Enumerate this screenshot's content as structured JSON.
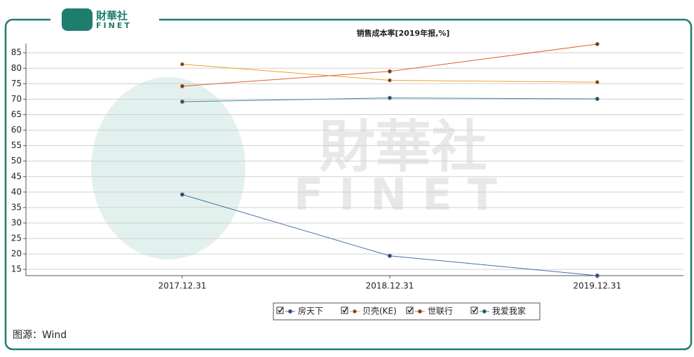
{
  "logo": {
    "cn": "財華社",
    "en": "FINET"
  },
  "watermark": {
    "cn": "財華社",
    "en": "FINET"
  },
  "source": "图源：Wind",
  "chart_data": {
    "type": "line",
    "title": "销售成本率[2019年报,%]",
    "categories": [
      "2017.12.31",
      "2018.12.31",
      "2019.12.31"
    ],
    "series": [
      {
        "name": "房天下",
        "color": "#4a6db0",
        "values": [
          39.2,
          19.4,
          13
        ]
      },
      {
        "name": "贝壳(KE)",
        "color": "#f0a030",
        "values": [
          81.3,
          76.1,
          75.5
        ]
      },
      {
        "name": "世联行",
        "color": "#e0602a",
        "values": [
          74.2,
          79,
          87.8
        ]
      },
      {
        "name": "我爱我家",
        "color": "#3a8aa0",
        "values": [
          69.2,
          70.4,
          70.1
        ]
      }
    ],
    "ylim": [
      13,
      88
    ],
    "yticks": [
      15,
      20,
      25,
      30,
      35,
      40,
      45,
      50,
      55,
      60,
      65,
      70,
      75,
      80,
      85
    ],
    "grid": true
  }
}
